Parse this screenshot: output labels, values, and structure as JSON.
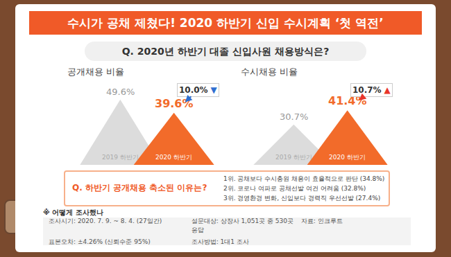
{
  "title": "수시가 공채 제쳤다! 2020 하반기 신입 수시계획 ‘첫 역전’",
  "question": "Q. 2020년 하반기 대졸 신입사원 채용방식은?",
  "chart_data": [
    {
      "type": "triangle",
      "title": "공개채용 비율",
      "categories": [
        "2019 하반기",
        "2020 하반기"
      ],
      "values": [
        49.6,
        39.6
      ],
      "value_labels": [
        "49.6%",
        "39.6%"
      ],
      "colors": [
        "#dcdcdc",
        "#f26b2a"
      ],
      "data_labels": true,
      "ylim": [
        0,
        60
      ],
      "tick_labels": false,
      "grid": false,
      "change": {
        "text": "10.0%",
        "symbol": "▼",
        "color": "#2f6fd0"
      }
    },
    {
      "type": "triangle",
      "title": "수시채용 비율",
      "categories": [
        "2019 하반기",
        "2020 하반기"
      ],
      "values": [
        30.7,
        41.4
      ],
      "value_labels": [
        "30.7%",
        "41.4%"
      ],
      "colors": [
        "#dcdcdc",
        "#f26b2a"
      ],
      "data_labels": true,
      "ylim": [
        0,
        60
      ],
      "tick_labels": false,
      "grid": false,
      "change": {
        "text": "10.7%",
        "symbol": "▲",
        "color": "#e8352a"
      }
    }
  ],
  "reasons": {
    "question": "Q. 하반기 공개채용 축소된 이유는?",
    "items": [
      "1위. 공채보다 수시충원 채용이 효율적으로 판단 (34.8%)",
      "2위. 코로나 여파로 공채선발 여건 어려움 (32.8%)",
      "3위. 경영환경 변화, 신입보다 경력직 우선선발 (27.4%)"
    ]
  },
  "survey": {
    "heading": "※ 어떻게 조사했나",
    "items": [
      "조사시기: 2020. 7. 9. ~ 8. 4. (27일간)",
      "설문대상: 상장사 1,051곳 중 530곳 응답",
      "자료: 인크루트",
      "표본오차: ±4.26% (신뢰수준 95%)",
      "조사방법: 1대1 조사"
    ]
  }
}
